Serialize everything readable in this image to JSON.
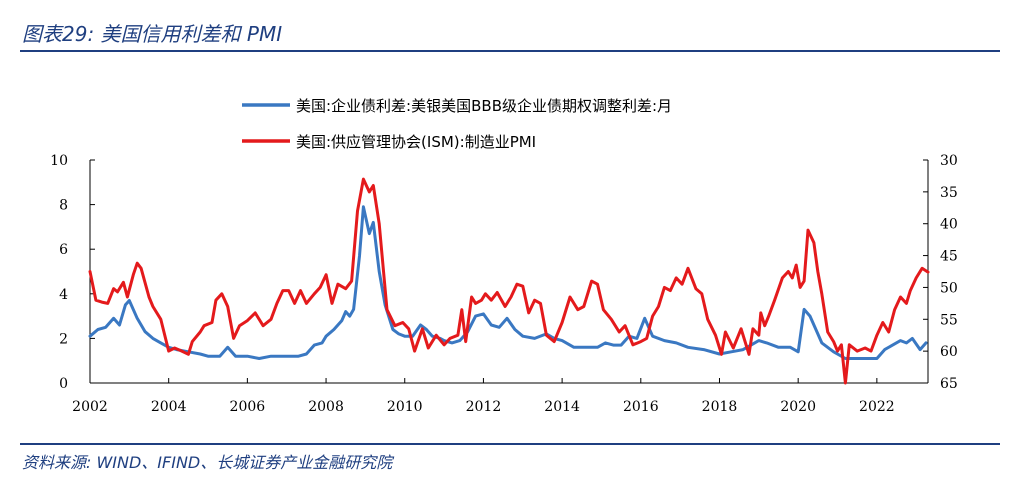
{
  "figure": {
    "title": "图表29:  美国信用利差和 PMI",
    "source": "资料来源:  WIND、IFIND、长城证券产业金融研究院"
  },
  "chart_data": {
    "type": "line",
    "x_ticks": [
      "2002",
      "2004",
      "2006",
      "2008",
      "2010",
      "2012",
      "2014",
      "2016",
      "2018",
      "2020",
      "2022"
    ],
    "xlim": [
      2002,
      2023.3
    ],
    "y_left": {
      "ylim": [
        0,
        10
      ],
      "ticks": [
        "0",
        "2",
        "4",
        "6",
        "8",
        "10"
      ]
    },
    "y_right": {
      "ylim": [
        30,
        65
      ],
      "inverted": true,
      "ticks": [
        "30",
        "35",
        "40",
        "45",
        "50",
        "55",
        "60",
        "65"
      ]
    },
    "grid": false,
    "legend_position": "top-center",
    "series": [
      {
        "name": "美国:企业债利差:美银美国BBB级企业债期权调整利差:月",
        "axis": "left",
        "color": "#3a78c2",
        "points": [
          [
            2002.0,
            2.1
          ],
          [
            2002.2,
            2.4
          ],
          [
            2002.4,
            2.5
          ],
          [
            2002.6,
            2.9
          ],
          [
            2002.75,
            2.6
          ],
          [
            2002.9,
            3.5
          ],
          [
            2003.0,
            3.7
          ],
          [
            2003.2,
            2.9
          ],
          [
            2003.4,
            2.3
          ],
          [
            2003.6,
            2.0
          ],
          [
            2003.8,
            1.8
          ],
          [
            2004.0,
            1.6
          ],
          [
            2004.2,
            1.5
          ],
          [
            2004.5,
            1.4
          ],
          [
            2004.8,
            1.3
          ],
          [
            2005.0,
            1.2
          ],
          [
            2005.3,
            1.2
          ],
          [
            2005.5,
            1.6
          ],
          [
            2005.7,
            1.2
          ],
          [
            2006.0,
            1.2
          ],
          [
            2006.3,
            1.1
          ],
          [
            2006.6,
            1.2
          ],
          [
            2007.0,
            1.2
          ],
          [
            2007.3,
            1.2
          ],
          [
            2007.5,
            1.3
          ],
          [
            2007.7,
            1.7
          ],
          [
            2007.9,
            1.8
          ],
          [
            2008.0,
            2.1
          ],
          [
            2008.2,
            2.4
          ],
          [
            2008.4,
            2.8
          ],
          [
            2008.5,
            3.2
          ],
          [
            2008.6,
            3.0
          ],
          [
            2008.7,
            3.3
          ],
          [
            2008.85,
            5.7
          ],
          [
            2008.95,
            7.9
          ],
          [
            2009.1,
            6.7
          ],
          [
            2009.2,
            7.2
          ],
          [
            2009.35,
            5.0
          ],
          [
            2009.5,
            3.5
          ],
          [
            2009.7,
            2.4
          ],
          [
            2009.85,
            2.2
          ],
          [
            2010.0,
            2.1
          ],
          [
            2010.2,
            2.1
          ],
          [
            2010.4,
            2.6
          ],
          [
            2010.55,
            2.4
          ],
          [
            2010.7,
            2.1
          ],
          [
            2010.9,
            2.0
          ],
          [
            2011.0,
            1.9
          ],
          [
            2011.2,
            1.8
          ],
          [
            2011.4,
            1.9
          ],
          [
            2011.6,
            2.3
          ],
          [
            2011.8,
            3.0
          ],
          [
            2012.0,
            3.1
          ],
          [
            2012.2,
            2.6
          ],
          [
            2012.4,
            2.5
          ],
          [
            2012.6,
            2.9
          ],
          [
            2012.8,
            2.4
          ],
          [
            2013.0,
            2.1
          ],
          [
            2013.3,
            2.0
          ],
          [
            2013.6,
            2.2
          ],
          [
            2013.8,
            2.0
          ],
          [
            2014.0,
            1.9
          ],
          [
            2014.3,
            1.6
          ],
          [
            2014.6,
            1.6
          ],
          [
            2014.9,
            1.6
          ],
          [
            2015.1,
            1.8
          ],
          [
            2015.3,
            1.7
          ],
          [
            2015.5,
            1.7
          ],
          [
            2015.7,
            2.1
          ],
          [
            2015.9,
            2.0
          ],
          [
            2016.1,
            2.9
          ],
          [
            2016.3,
            2.1
          ],
          [
            2016.6,
            1.9
          ],
          [
            2016.9,
            1.8
          ],
          [
            2017.2,
            1.6
          ],
          [
            2017.6,
            1.5
          ],
          [
            2018.0,
            1.3
          ],
          [
            2018.3,
            1.4
          ],
          [
            2018.6,
            1.5
          ],
          [
            2018.8,
            1.7
          ],
          [
            2019.0,
            1.9
          ],
          [
            2019.2,
            1.8
          ],
          [
            2019.5,
            1.6
          ],
          [
            2019.8,
            1.6
          ],
          [
            2020.0,
            1.4
          ],
          [
            2020.15,
            3.3
          ],
          [
            2020.3,
            3.0
          ],
          [
            2020.45,
            2.4
          ],
          [
            2020.6,
            1.8
          ],
          [
            2020.9,
            1.4
          ],
          [
            2021.2,
            1.1
          ],
          [
            2021.5,
            1.1
          ],
          [
            2021.8,
            1.1
          ],
          [
            2022.0,
            1.1
          ],
          [
            2022.2,
            1.5
          ],
          [
            2022.4,
            1.7
          ],
          [
            2022.6,
            1.9
          ],
          [
            2022.75,
            1.8
          ],
          [
            2022.9,
            2.0
          ],
          [
            2023.1,
            1.5
          ],
          [
            2023.25,
            1.8
          ]
        ]
      },
      {
        "name": "美国:供应管理协会(ISM):制造业PMI",
        "axis": "right",
        "color": "#e41a1c",
        "points": [
          [
            2002.0,
            47.5
          ],
          [
            2002.15,
            52.0
          ],
          [
            2002.3,
            52.3
          ],
          [
            2002.45,
            52.5
          ],
          [
            2002.6,
            50.2
          ],
          [
            2002.7,
            50.7
          ],
          [
            2002.85,
            49.2
          ],
          [
            2002.95,
            51.5
          ],
          [
            2003.1,
            48.0
          ],
          [
            2003.2,
            46.2
          ],
          [
            2003.3,
            47.0
          ],
          [
            2003.5,
            51.5
          ],
          [
            2003.6,
            53.0
          ],
          [
            2003.8,
            55.0
          ],
          [
            2004.0,
            60.0
          ],
          [
            2004.15,
            59.5
          ],
          [
            2004.3,
            59.9
          ],
          [
            2004.5,
            60.5
          ],
          [
            2004.6,
            58.5
          ],
          [
            2004.8,
            57.0
          ],
          [
            2004.9,
            56.0
          ],
          [
            2005.1,
            55.5
          ],
          [
            2005.2,
            52.0
          ],
          [
            2005.35,
            51.0
          ],
          [
            2005.5,
            53.0
          ],
          [
            2005.65,
            58.0
          ],
          [
            2005.8,
            56.0
          ],
          [
            2006.0,
            55.2
          ],
          [
            2006.2,
            54.0
          ],
          [
            2006.4,
            56.0
          ],
          [
            2006.6,
            55.0
          ],
          [
            2006.75,
            52.5
          ],
          [
            2006.9,
            50.5
          ],
          [
            2007.05,
            50.5
          ],
          [
            2007.2,
            52.5
          ],
          [
            2007.35,
            50.5
          ],
          [
            2007.5,
            52.5
          ],
          [
            2007.7,
            51.0
          ],
          [
            2007.85,
            50.0
          ],
          [
            2008.0,
            48.0
          ],
          [
            2008.15,
            52.5
          ],
          [
            2008.3,
            49.5
          ],
          [
            2008.5,
            50.2
          ],
          [
            2008.65,
            49.0
          ],
          [
            2008.8,
            38.0
          ],
          [
            2008.95,
            33.0
          ],
          [
            2009.1,
            35.0
          ],
          [
            2009.2,
            34.0
          ],
          [
            2009.35,
            40.0
          ],
          [
            2009.55,
            53.5
          ],
          [
            2009.75,
            56.0
          ],
          [
            2009.95,
            55.5
          ],
          [
            2010.1,
            56.5
          ],
          [
            2010.25,
            60.0
          ],
          [
            2010.45,
            56.5
          ],
          [
            2010.6,
            59.5
          ],
          [
            2010.8,
            57.5
          ],
          [
            2011.0,
            59.0
          ],
          [
            2011.15,
            58.0
          ],
          [
            2011.35,
            57.5
          ],
          [
            2011.45,
            53.5
          ],
          [
            2011.55,
            58.5
          ],
          [
            2011.7,
            51.5
          ],
          [
            2011.8,
            52.5
          ],
          [
            2011.95,
            52.0
          ],
          [
            2012.05,
            51.0
          ],
          [
            2012.2,
            52.0
          ],
          [
            2012.35,
            50.8
          ],
          [
            2012.55,
            53.0
          ],
          [
            2012.7,
            51.5
          ],
          [
            2012.85,
            49.5
          ],
          [
            2013.0,
            49.8
          ],
          [
            2013.15,
            54.0
          ],
          [
            2013.3,
            52.0
          ],
          [
            2013.45,
            52.5
          ],
          [
            2013.6,
            57.5
          ],
          [
            2013.8,
            58.5
          ],
          [
            2014.0,
            55.5
          ],
          [
            2014.2,
            51.5
          ],
          [
            2014.4,
            53.5
          ],
          [
            2014.55,
            53.0
          ],
          [
            2014.75,
            49.0
          ],
          [
            2014.9,
            49.5
          ],
          [
            2015.05,
            53.5
          ],
          [
            2015.25,
            55.0
          ],
          [
            2015.45,
            57.0
          ],
          [
            2015.6,
            56.0
          ],
          [
            2015.8,
            59.0
          ],
          [
            2016.0,
            58.5
          ],
          [
            2016.15,
            58.0
          ],
          [
            2016.3,
            54.5
          ],
          [
            2016.45,
            53.0
          ],
          [
            2016.6,
            50.0
          ],
          [
            2016.75,
            50.5
          ],
          [
            2016.9,
            48.5
          ],
          [
            2017.05,
            49.5
          ],
          [
            2017.2,
            47.0
          ],
          [
            2017.4,
            50.2
          ],
          [
            2017.55,
            51.0
          ],
          [
            2017.7,
            55.0
          ],
          [
            2017.9,
            57.5
          ],
          [
            2018.05,
            60.5
          ],
          [
            2018.15,
            57.0
          ],
          [
            2018.35,
            59.5
          ],
          [
            2018.55,
            56.5
          ],
          [
            2018.75,
            60.5
          ],
          [
            2018.85,
            56.5
          ],
          [
            2019.0,
            57.5
          ],
          [
            2019.05,
            54.0
          ],
          [
            2019.15,
            56.0
          ],
          [
            2019.25,
            54.5
          ],
          [
            2019.4,
            52.0
          ],
          [
            2019.6,
            48.5
          ],
          [
            2019.75,
            47.5
          ],
          [
            2019.85,
            48.5
          ],
          [
            2019.95,
            46.5
          ],
          [
            2020.05,
            50.0
          ],
          [
            2020.15,
            49.0
          ],
          [
            2020.25,
            41.0
          ],
          [
            2020.4,
            43.0
          ],
          [
            2020.5,
            47.5
          ],
          [
            2020.6,
            51.0
          ],
          [
            2020.75,
            57.0
          ],
          [
            2020.9,
            58.5
          ],
          [
            2021.0,
            60.0
          ],
          [
            2021.1,
            59.0
          ],
          [
            2021.2,
            65.0
          ],
          [
            2021.3,
            59.0
          ],
          [
            2021.5,
            60.0
          ],
          [
            2021.7,
            59.5
          ],
          [
            2021.85,
            60.0
          ],
          [
            2022.0,
            57.5
          ],
          [
            2022.15,
            55.5
          ],
          [
            2022.3,
            57.0
          ],
          [
            2022.45,
            53.5
          ],
          [
            2022.6,
            51.5
          ],
          [
            2022.75,
            52.5
          ],
          [
            2022.85,
            50.5
          ],
          [
            2023.0,
            48.5
          ],
          [
            2023.15,
            47.0
          ],
          [
            2023.3,
            47.6
          ]
        ]
      }
    ]
  }
}
